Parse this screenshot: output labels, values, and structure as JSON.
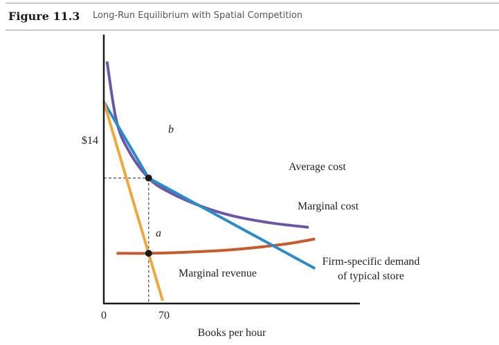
{
  "figure": {
    "label": "Figure 11.3",
    "caption": "Long-Run Equilibrium with Spatial Competition"
  },
  "chart_data": {
    "type": "line",
    "title": "Long-Run Equilibrium with Spatial Competition",
    "xlabel": "Books per hour",
    "ylabel": "",
    "xlim": [
      0,
      400
    ],
    "ylim": [
      0,
      30
    ],
    "x_ticks": [
      {
        "value": 0,
        "label": "0"
      },
      {
        "value": 70,
        "label": "70"
      }
    ],
    "y_ticks": [
      {
        "value": 14,
        "label": "$14"
      }
    ],
    "grid": false,
    "series": [
      {
        "name": "Average cost",
        "color": "#6c56a5",
        "x": [
          5,
          20,
          40,
          70,
          100,
          150,
          200,
          260,
          320
        ],
        "y": [
          27,
          20.3,
          16.9,
          14.0,
          12.5,
          10.9,
          9.8,
          9.0,
          8.5
        ]
      },
      {
        "name": "Marginal cost",
        "color": "#c85a2c",
        "x": [
          20,
          70,
          120,
          200,
          280,
          330
        ],
        "y": [
          5.6,
          5.6,
          5.7,
          6.0,
          6.6,
          7.2
        ]
      },
      {
        "name": "Firm-specific demand of typical store",
        "color": "#2a8cc8",
        "x": [
          0,
          70,
          330
        ],
        "y": [
          22.5,
          14.0,
          3.9
        ]
      },
      {
        "name": "Marginal revenue",
        "color": "#f0a83c",
        "x": [
          0,
          70,
          92
        ],
        "y": [
          22.5,
          5.6,
          0.3
        ]
      }
    ],
    "annotations": [
      {
        "text": "b",
        "x": 70,
        "y": 14.0
      },
      {
        "text": "a",
        "x": 70,
        "y": 5.6
      }
    ],
    "curve_labels": {
      "average_cost": "Average cost",
      "marginal_cost": "Marginal cost",
      "marginal_revenue": "Marginal revenue",
      "demand_line1": "Firm-specific demand",
      "demand_line2": "of typical store"
    }
  }
}
